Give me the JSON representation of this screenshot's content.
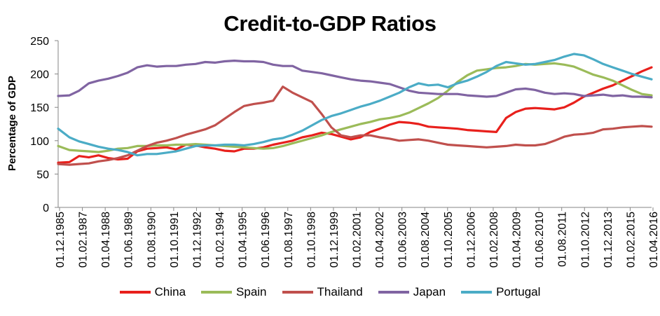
{
  "chart_data": {
    "type": "line",
    "title": "Credit-to-GDP Ratios",
    "xlabel": "",
    "ylabel": "Percentage of GDP",
    "ylim": [
      0,
      250
    ],
    "yticks": [
      0,
      50,
      100,
      150,
      200,
      250
    ],
    "grid": false,
    "legend_position": "bottom",
    "x_tick_labels": [
      "01.12.1985",
      "01.02.1987",
      "01.04.1988",
      "01.06.1989",
      "01.08.1990",
      "01.10.1991",
      "01.12.1992",
      "01.02.1994",
      "01.04.1995",
      "01.06.1996",
      "01.08.1997",
      "01.10.1998",
      "01.12.1999",
      "01.02.2001",
      "01.04.2002",
      "01.06.2003",
      "01.08.2004",
      "01.10.2005",
      "01.12.2006",
      "01.02.2008",
      "01.04.2009",
      "01.06.2010",
      "01.08.2011",
      "01.10.2012",
      "01.12.2013",
      "01.02.2015",
      "01.04.2016"
    ],
    "x_start": 1985.92,
    "x_end": 2016.5,
    "series": [
      {
        "name": "China",
        "color": "#e8201c",
        "x": [
          1985.92,
          1986.5,
          1987.0,
          1987.5,
          1988.0,
          1988.5,
          1989.0,
          1989.5,
          1990.0,
          1990.5,
          1991.0,
          1991.5,
          1992.0,
          1992.5,
          1993.0,
          1993.5,
          1994.0,
          1994.5,
          1995.0,
          1995.5,
          1996.0,
          1996.5,
          1997.0,
          1997.5,
          1998.0,
          1998.5,
          1999.0,
          1999.5,
          2000.0,
          2000.5,
          2001.0,
          2001.5,
          2002.0,
          2002.5,
          2003.0,
          2003.5,
          2004.0,
          2004.5,
          2005.0,
          2005.5,
          2006.0,
          2006.5,
          2007.0,
          2007.5,
          2008.0,
          2008.5,
          2009.0,
          2009.5,
          2010.0,
          2010.5,
          2011.0,
          2011.5,
          2012.0,
          2012.5,
          2013.0,
          2013.5,
          2014.0,
          2014.5,
          2015.0,
          2015.5,
          2016.0,
          2016.5
        ],
        "values": [
          67,
          68,
          77,
          75,
          78,
          74,
          72,
          73,
          84,
          88,
          89,
          90,
          87,
          94,
          93,
          90,
          88,
          85,
          84,
          88,
          88,
          90,
          94,
          97,
          100,
          105,
          108,
          112,
          110,
          106,
          102,
          105,
          113,
          118,
          124,
          128,
          127,
          125,
          121,
          120,
          119,
          118,
          116,
          115,
          114,
          113,
          134,
          143,
          148,
          149,
          148,
          147,
          150,
          157,
          166,
          172,
          178,
          183,
          190,
          197,
          204,
          210
        ]
      },
      {
        "name": "Spain",
        "color": "#9bbb59",
        "x": [
          1985.92,
          1986.5,
          1987.0,
          1987.5,
          1988.0,
          1988.5,
          1989.0,
          1989.5,
          1990.0,
          1990.5,
          1991.0,
          1991.5,
          1992.0,
          1992.5,
          1993.0,
          1993.5,
          1994.0,
          1994.5,
          1995.0,
          1995.5,
          1996.0,
          1996.5,
          1997.0,
          1997.5,
          1998.0,
          1998.5,
          1999.0,
          1999.5,
          2000.0,
          2000.5,
          2001.0,
          2001.5,
          2002.0,
          2002.5,
          2003.0,
          2003.5,
          2004.0,
          2004.5,
          2005.0,
          2005.5,
          2006.0,
          2006.5,
          2007.0,
          2007.5,
          2008.0,
          2008.5,
          2009.0,
          2009.5,
          2010.0,
          2010.5,
          2011.0,
          2011.5,
          2012.0,
          2012.5,
          2013.0,
          2013.5,
          2014.0,
          2014.5,
          2015.0,
          2015.5,
          2016.0,
          2016.5
        ],
        "values": [
          92,
          86,
          85,
          84,
          83,
          85,
          88,
          89,
          92,
          92,
          93,
          93,
          94,
          94,
          95,
          94,
          93,
          92,
          91,
          90,
          89,
          88,
          89,
          92,
          96,
          100,
          104,
          108,
          113,
          117,
          121,
          125,
          128,
          132,
          134,
          137,
          142,
          149,
          156,
          164,
          175,
          188,
          198,
          205,
          207,
          209,
          210,
          212,
          215,
          214,
          215,
          216,
          214,
          211,
          205,
          199,
          195,
          190,
          183,
          176,
          170,
          168
        ]
      },
      {
        "name": "Thailand",
        "color": "#c0504d",
        "x": [
          1985.92,
          1986.5,
          1987.0,
          1987.5,
          1988.0,
          1988.5,
          1989.0,
          1989.5,
          1990.0,
          1990.5,
          1991.0,
          1991.5,
          1992.0,
          1992.5,
          1993.0,
          1993.5,
          1994.0,
          1994.5,
          1995.0,
          1995.5,
          1996.0,
          1996.5,
          1997.0,
          1997.5,
          1998.0,
          1998.5,
          1999.0,
          1999.5,
          2000.0,
          2000.5,
          2001.0,
          2001.5,
          2002.0,
          2002.5,
          2003.0,
          2003.5,
          2004.0,
          2004.5,
          2005.0,
          2005.5,
          2006.0,
          2006.5,
          2007.0,
          2007.5,
          2008.0,
          2008.5,
          2009.0,
          2009.5,
          2010.0,
          2010.5,
          2011.0,
          2011.5,
          2012.0,
          2012.5,
          2013.0,
          2013.5,
          2014.0,
          2014.5,
          2015.0,
          2015.5,
          2016.0,
          2016.5
        ],
        "values": [
          65,
          64,
          65,
          66,
          69,
          71,
          74,
          78,
          85,
          92,
          97,
          100,
          104,
          109,
          113,
          117,
          123,
          133,
          143,
          152,
          155,
          157,
          160,
          181,
          172,
          165,
          158,
          140,
          120,
          108,
          105,
          108,
          108,
          105,
          103,
          100,
          101,
          102,
          100,
          97,
          94,
          93,
          92,
          91,
          90,
          91,
          92,
          94,
          93,
          93,
          95,
          100,
          106,
          109,
          110,
          112,
          117,
          118,
          120,
          121,
          122,
          121
        ]
      },
      {
        "name": "Japan",
        "color": "#8064a2",
        "x": [
          1985.92,
          1986.5,
          1987.0,
          1987.5,
          1988.0,
          1988.5,
          1989.0,
          1989.5,
          1990.0,
          1990.5,
          1991.0,
          1991.5,
          1992.0,
          1992.5,
          1993.0,
          1993.5,
          1994.0,
          1994.5,
          1995.0,
          1995.5,
          1996.0,
          1996.5,
          1997.0,
          1997.5,
          1998.0,
          1998.5,
          1999.0,
          1999.5,
          2000.0,
          2000.5,
          2001.0,
          2001.5,
          2002.0,
          2002.5,
          2003.0,
          2003.5,
          2004.0,
          2004.5,
          2005.0,
          2005.5,
          2006.0,
          2006.5,
          2007.0,
          2007.5,
          2008.0,
          2008.5,
          2009.0,
          2009.5,
          2010.0,
          2010.5,
          2011.0,
          2011.5,
          2012.0,
          2012.5,
          2013.0,
          2013.5,
          2014.0,
          2014.5,
          2015.0,
          2015.5,
          2016.0,
          2016.5
        ],
        "values": [
          167,
          168,
          175,
          186,
          190,
          193,
          197,
          202,
          210,
          213,
          211,
          212,
          212,
          214,
          215,
          218,
          217,
          219,
          220,
          219,
          219,
          218,
          214,
          212,
          212,
          205,
          203,
          201,
          198,
          195,
          192,
          190,
          189,
          187,
          185,
          180,
          175,
          172,
          171,
          170,
          170,
          170,
          168,
          167,
          166,
          167,
          172,
          177,
          178,
          176,
          172,
          170,
          171,
          170,
          167,
          168,
          169,
          167,
          168,
          166,
          166,
          165
        ]
      },
      {
        "name": "Portugal",
        "color": "#4bacc6",
        "x": [
          1985.92,
          1986.5,
          1987.0,
          1987.5,
          1988.0,
          1988.5,
          1989.0,
          1989.5,
          1990.0,
          1990.5,
          1991.0,
          1991.5,
          1992.0,
          1992.5,
          1993.0,
          1993.5,
          1994.0,
          1994.5,
          1995.0,
          1995.5,
          1996.0,
          1996.5,
          1997.0,
          1997.5,
          1998.0,
          1998.5,
          1999.0,
          1999.5,
          2000.0,
          2000.5,
          2001.0,
          2001.5,
          2002.0,
          2002.5,
          2003.0,
          2003.5,
          2004.0,
          2004.5,
          2005.0,
          2005.5,
          2006.0,
          2006.5,
          2007.0,
          2007.5,
          2008.0,
          2008.5,
          2009.0,
          2009.5,
          2010.0,
          2010.5,
          2011.0,
          2011.5,
          2012.0,
          2012.5,
          2013.0,
          2013.5,
          2014.0,
          2014.5,
          2015.0,
          2015.5,
          2016.0,
          2016.5
        ],
        "values": [
          118,
          105,
          99,
          95,
          91,
          88,
          86,
          83,
          78,
          80,
          80,
          82,
          84,
          88,
          92,
          93,
          93,
          94,
          94,
          93,
          95,
          98,
          102,
          104,
          109,
          115,
          123,
          131,
          137,
          141,
          146,
          151,
          155,
          160,
          166,
          172,
          180,
          186,
          183,
          184,
          180,
          186,
          190,
          196,
          203,
          212,
          218,
          216,
          214,
          215,
          218,
          221,
          226,
          230,
          228,
          222,
          215,
          210,
          205,
          200,
          196,
          192
        ]
      }
    ]
  }
}
